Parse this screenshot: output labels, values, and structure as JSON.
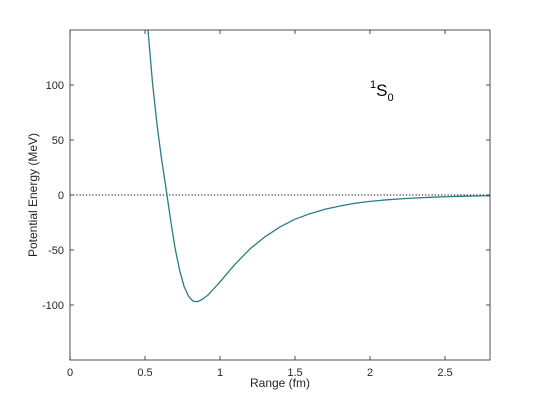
{
  "chart_data": {
    "type": "line",
    "title": "",
    "xlabel": "Range (fm)",
    "ylabel": "Potential Energy (MeV)",
    "xlim": [
      0,
      2.8
    ],
    "ylim": [
      -150,
      150
    ],
    "x_ticks": [
      0,
      0.5,
      1,
      1.5,
      2,
      2.5
    ],
    "x_tick_labels": [
      "0",
      "0.5",
      "1",
      "1.5",
      "2",
      "2.5"
    ],
    "y_ticks": [
      -100,
      -50,
      0,
      50,
      100
    ],
    "y_tick_labels": [
      "-100",
      "-50",
      "0",
      "50",
      "100"
    ],
    "grid": false,
    "annotation": {
      "base": "S",
      "superscript": "1",
      "subscript": "0"
    },
    "reference_line": {
      "y": 0,
      "style": "dotted",
      "color": "#000000"
    },
    "series": [
      {
        "color": "#2a7b86",
        "x": [
          0.52,
          0.55,
          0.58,
          0.61,
          0.64,
          0.67,
          0.7,
          0.73,
          0.76,
          0.79,
          0.82,
          0.85,
          0.88,
          0.92,
          0.96,
          1.0,
          1.05,
          1.1,
          1.15,
          1.2,
          1.3,
          1.4,
          1.5,
          1.6,
          1.7,
          1.8,
          1.9,
          2.0,
          2.1,
          2.2,
          2.3,
          2.4,
          2.5,
          2.6,
          2.7,
          2.8
        ],
        "y": [
          150,
          102,
          64,
          33,
          6,
          -22,
          -48,
          -68,
          -83,
          -92,
          -96.5,
          -97,
          -95,
          -91,
          -85,
          -79,
          -71,
          -63,
          -56,
          -49,
          -38,
          -29,
          -22,
          -17,
          -13,
          -10,
          -7.5,
          -5.8,
          -4.5,
          -3.5,
          -2.7,
          -2.1,
          -1.6,
          -1.2,
          -0.9,
          -0.7
        ]
      }
    ]
  }
}
